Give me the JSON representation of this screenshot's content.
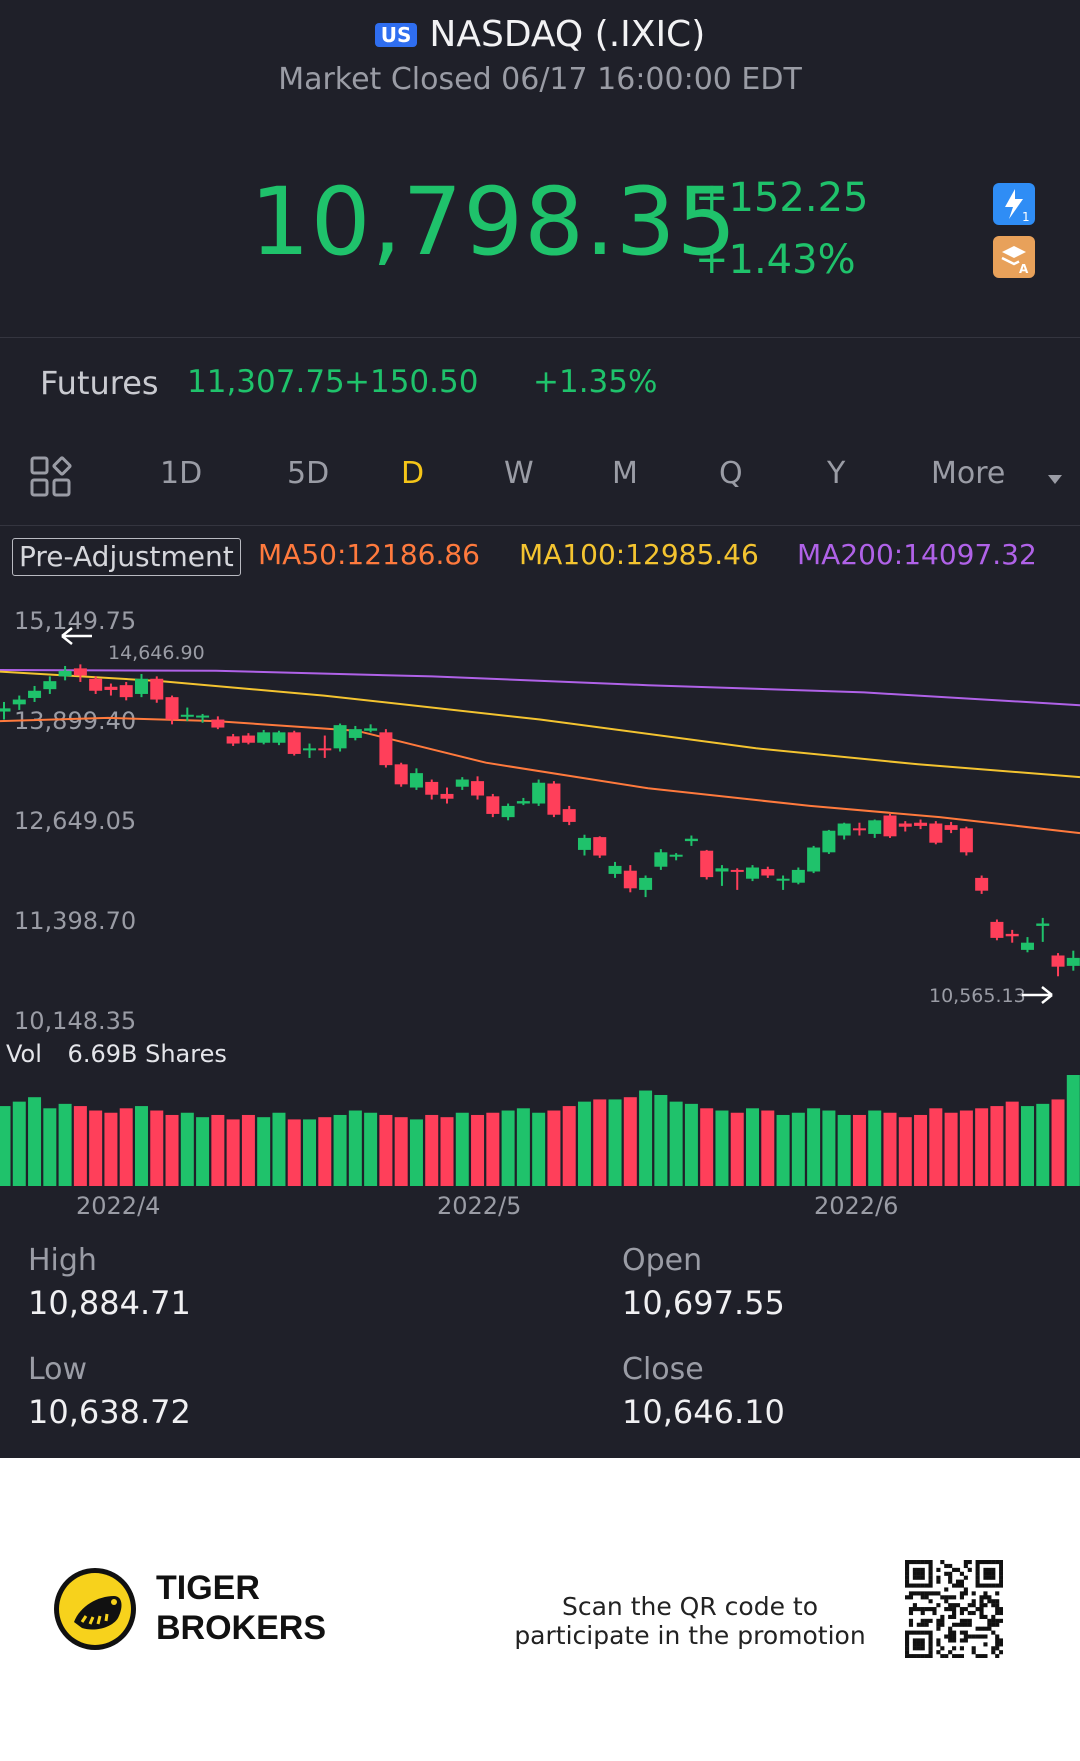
{
  "header": {
    "market_badge": "US",
    "title": "NASDAQ (.IXIC)",
    "status": "Market Closed 06/17 16:00:00 EDT"
  },
  "quote": {
    "price": "10,798.35",
    "change": "+152.25",
    "change_pct": "+1.43%"
  },
  "futures": {
    "label": "Futures",
    "price": "11,307.75",
    "change": "+150.50",
    "change_pct": "+1.35%"
  },
  "tabs": {
    "grid_icon": "grid-icon",
    "items": [
      "1D",
      "5D",
      "D",
      "W",
      "M",
      "Q",
      "Y",
      "More"
    ],
    "active": "D"
  },
  "indicators": {
    "adjustment": "Pre-Adjustment",
    "ma50": "MA50:12186.86",
    "ma100": "MA100:12985.46",
    "ma200": "MA200:14097.32"
  },
  "colors": {
    "up": "#1fc26b",
    "down": "#ff3f5a",
    "ma50": "#ff7a3d",
    "ma100": "#f4c430",
    "ma200": "#b062e8",
    "background": "#1f2029"
  },
  "chart_data": {
    "type": "candlestick",
    "y_ticks": [
      "15,149.75",
      "13,899.40",
      "12,649.05",
      "11,398.70",
      "10,148.35"
    ],
    "ylim": [
      10148.35,
      15149.75
    ],
    "period_high_label": "14,646.90",
    "period_low_label": "10,565.13",
    "x_labels": [
      "2022/4",
      "2022/5",
      "2022/6"
    ],
    "volume_label": "Vol",
    "volume_value": "6.69B Shares",
    "candles": [
      [
        13880,
        13920,
        13780,
        14000
      ],
      [
        13970,
        14030,
        13900,
        14080
      ],
      [
        14050,
        14140,
        14000,
        14200
      ],
      [
        14160,
        14260,
        14100,
        14320
      ],
      [
        14320,
        14390,
        14270,
        14450
      ],
      [
        14420,
        14330,
        14250,
        14470
      ],
      [
        14290,
        14140,
        14100,
        14320
      ],
      [
        14190,
        14150,
        14080,
        14230
      ],
      [
        14210,
        14060,
        14020,
        14250
      ],
      [
        14100,
        14290,
        14060,
        14350
      ],
      [
        14290,
        14030,
        13990,
        14320
      ],
      [
        14060,
        13780,
        13720,
        14080
      ],
      [
        13830,
        13840,
        13760,
        13930
      ],
      [
        13810,
        13830,
        13740,
        13850
      ],
      [
        13780,
        13680,
        13660,
        13820
      ],
      [
        13570,
        13480,
        13450,
        13600
      ],
      [
        13580,
        13490,
        13470,
        13610
      ],
      [
        13490,
        13620,
        13470,
        13650
      ],
      [
        13490,
        13620,
        13460,
        13640
      ],
      [
        13620,
        13350,
        13330,
        13640
      ],
      [
        13400,
        13420,
        13300,
        13480
      ],
      [
        13420,
        13400,
        13300,
        13580
      ],
      [
        13420,
        13710,
        13380,
        13730
      ],
      [
        13550,
        13660,
        13520,
        13700
      ],
      [
        13640,
        13670,
        13620,
        13720
      ],
      [
        13620,
        13210,
        13180,
        13660
      ],
      [
        13220,
        12970,
        12940,
        13240
      ],
      [
        12930,
        13110,
        12900,
        13170
      ],
      [
        13000,
        12840,
        12780,
        13030
      ],
      [
        12850,
        12790,
        12730,
        12930
      ],
      [
        12940,
        13030,
        12900,
        13060
      ],
      [
        13010,
        12830,
        12780,
        13070
      ],
      [
        12820,
        12600,
        12560,
        12850
      ],
      [
        12560,
        12700,
        12520,
        12730
      ],
      [
        12730,
        12760,
        12710,
        12800
      ],
      [
        12730,
        12990,
        12700,
        13030
      ],
      [
        12980,
        12590,
        12560,
        13010
      ],
      [
        12660,
        12500,
        12460,
        12700
      ],
      [
        12150,
        12300,
        12080,
        12340
      ],
      [
        12310,
        12080,
        12050,
        12320
      ],
      [
        11850,
        11950,
        11800,
        12000
      ],
      [
        11890,
        11670,
        11620,
        11960
      ],
      [
        11650,
        11800,
        11560,
        11830
      ],
      [
        11940,
        12120,
        11900,
        12160
      ],
      [
        12070,
        12090,
        12020,
        12110
      ],
      [
        12260,
        12290,
        12200,
        12330
      ],
      [
        12140,
        11810,
        11780,
        12150
      ],
      [
        11880,
        11920,
        11700,
        11960
      ],
      [
        11900,
        11880,
        11650,
        11920
      ],
      [
        11790,
        11930,
        11760,
        11960
      ],
      [
        11910,
        11830,
        11800,
        11940
      ],
      [
        11790,
        11790,
        11650,
        11830
      ],
      [
        11740,
        11900,
        11720,
        11930
      ],
      [
        11880,
        12180,
        11860,
        12200
      ],
      [
        12120,
        12390,
        12100,
        12400
      ],
      [
        12330,
        12480,
        12280,
        12490
      ],
      [
        12420,
        12410,
        12330,
        12490
      ],
      [
        12350,
        12520,
        12300,
        12530
      ],
      [
        12580,
        12320,
        12300,
        12600
      ],
      [
        12480,
        12440,
        12380,
        12510
      ],
      [
        12490,
        12450,
        12410,
        12530
      ],
      [
        12480,
        12240,
        12220,
        12510
      ],
      [
        12460,
        12400,
        12360,
        12500
      ],
      [
        12420,
        12120,
        12080,
        12440
      ],
      [
        11800,
        11640,
        11600,
        11830
      ],
      [
        11250,
        11050,
        11020,
        11280
      ],
      [
        11100,
        11070,
        10990,
        11150
      ],
      [
        10900,
        10990,
        10870,
        11060
      ],
      [
        11200,
        11230,
        11000,
        11300
      ],
      [
        10830,
        10690,
        10570,
        10860
      ],
      [
        10700,
        10800,
        10640,
        10890
      ]
    ],
    "volume": [
      72,
      76,
      80,
      70,
      74,
      72,
      68,
      66,
      70,
      72,
      68,
      64,
      66,
      62,
      64,
      60,
      64,
      62,
      66,
      60,
      60,
      62,
      64,
      68,
      66,
      64,
      62,
      60,
      64,
      62,
      66,
      64,
      66,
      68,
      70,
      66,
      68,
      72,
      76,
      78,
      78,
      80,
      86,
      82,
      76,
      74,
      70,
      68,
      66,
      70,
      68,
      64,
      66,
      70,
      68,
      64,
      64,
      68,
      66,
      62,
      64,
      70,
      66,
      68,
      70,
      72,
      76,
      72,
      74,
      78,
      100
    ]
  },
  "stats": {
    "high_label": "High",
    "high": "10,884.71",
    "open_label": "Open",
    "open": "10,697.55",
    "low_label": "Low",
    "low": "10,638.72",
    "close_label": "Close",
    "close": "10,646.10"
  },
  "footer": {
    "brand_line1": "TIGER",
    "brand_line2": "BROKERS",
    "promo_line1": "Scan the QR code to",
    "promo_line2": "participate in the promotion"
  }
}
